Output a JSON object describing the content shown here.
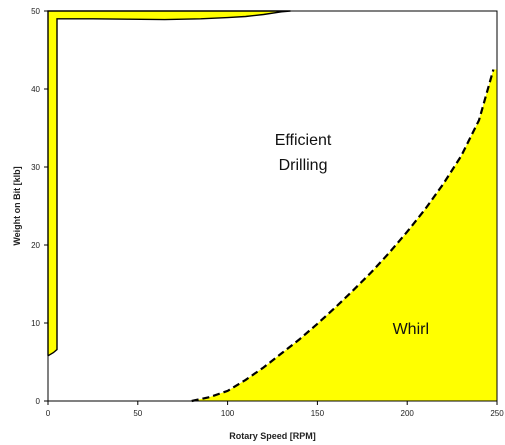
{
  "chart_data": {
    "type": "area",
    "title": "",
    "xlabel": "Rotary Speed [RPM]",
    "ylabel": "Weight on Bit [klb]",
    "xlim": [
      0,
      250
    ],
    "ylim": [
      0,
      50
    ],
    "xticks": [
      0,
      50,
      100,
      150,
      200,
      250
    ],
    "yticks": [
      0,
      10,
      20,
      30,
      40,
      50
    ],
    "grid": false,
    "legend": "none",
    "colors": {
      "fill": "#ffff00",
      "line": "#000000",
      "frame": "#000000"
    },
    "series": [
      {
        "style": "solid",
        "x": [
          0,
          3,
          5,
          5,
          25,
          45,
          65,
          85,
          100,
          110,
          120,
          130,
          135,
          125,
          110,
          95,
          80,
          60,
          40,
          30,
          28,
          0
        ],
        "y": [
          5.8,
          6.2,
          6.6,
          49.0,
          49.0,
          48.95,
          48.9,
          49.0,
          49.15,
          49.3,
          49.55,
          49.9,
          50.0,
          50.0,
          50.0,
          50.0,
          50.0,
          50.0,
          50.0,
          50.0,
          50.0,
          50.0
        ]
      },
      {
        "style": "dashed",
        "x": [
          80,
          90,
          100,
          110,
          120,
          130,
          140,
          150,
          160,
          170,
          180,
          190,
          200,
          210,
          220,
          230,
          240,
          248
        ],
        "y": [
          0,
          0.5,
          1.3,
          2.7,
          4.3,
          6.1,
          7.9,
          9.9,
          12.0,
          14.2,
          16.5,
          19.0,
          21.7,
          24.6,
          27.8,
          31.4,
          36.0,
          42.5
        ]
      }
    ],
    "annotations": [
      {
        "text": "Efficient",
        "x": 142,
        "y": 32.8
      },
      {
        "text": "Drilling",
        "x": 142,
        "y": 29.6
      },
      {
        "text": "Whirl",
        "x": 202,
        "y": 8.6
      }
    ]
  }
}
